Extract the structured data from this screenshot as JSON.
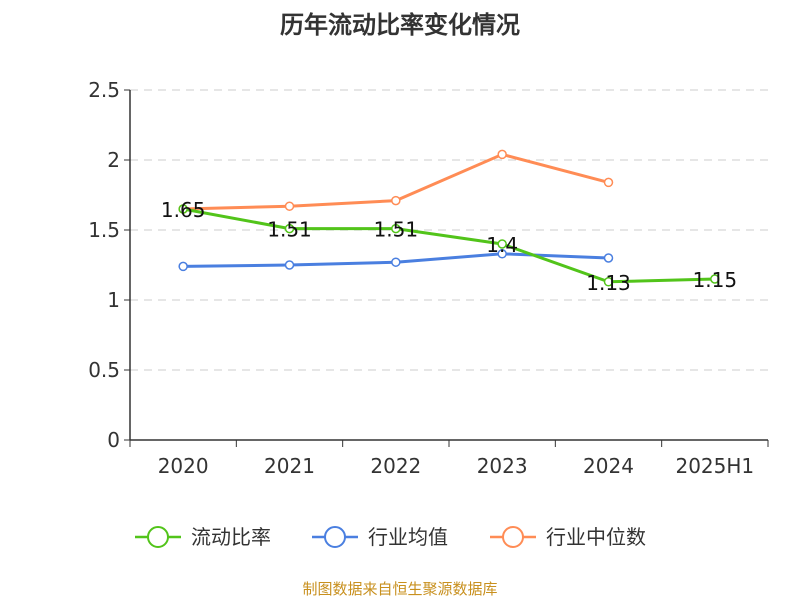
{
  "chart_data": {
    "type": "line",
    "title": "历年流动比率变化情况",
    "categories": [
      "2020",
      "2021",
      "2022",
      "2023",
      "2024",
      "2025H1"
    ],
    "ylim": [
      0,
      2.5
    ],
    "yticks": [
      "0",
      "0.5",
      "1",
      "1.5",
      "2",
      "2.5"
    ],
    "grid": true,
    "legend_placement": "bottom",
    "series": [
      {
        "name": "流动比率",
        "color": "#52c41a",
        "values": [
          1.65,
          1.51,
          1.51,
          1.4,
          1.13,
          1.15
        ],
        "labels": [
          "1.65",
          "1.51",
          "1.51",
          "1.4",
          "1.13",
          "1.15"
        ]
      },
      {
        "name": "行业均值",
        "color": "#4a7fe0",
        "values": [
          1.24,
          1.25,
          1.27,
          1.33,
          1.3,
          null
        ]
      },
      {
        "name": "行业中位数",
        "color": "#ff8c55",
        "values": [
          1.65,
          1.67,
          1.71,
          2.04,
          1.84,
          null
        ]
      }
    ]
  },
  "source": "制图数据来自恒生聚源数据库"
}
